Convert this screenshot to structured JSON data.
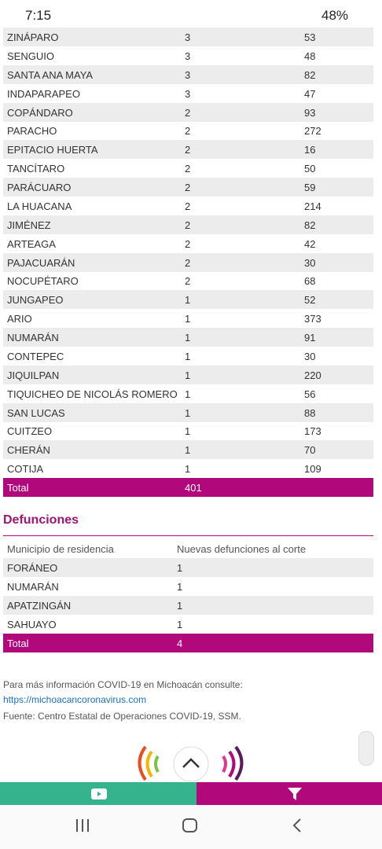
{
  "status_bar": {
    "time": "7:15",
    "battery": "48%"
  },
  "cases_table": {
    "rows": [
      [
        "ZINÁPARO",
        3,
        53
      ],
      [
        "SENGUIO",
        3,
        48
      ],
      [
        "SANTA ANA MAYA",
        3,
        82
      ],
      [
        "INDAPARAPEO",
        3,
        47
      ],
      [
        "COPÁNDARO",
        2,
        93
      ],
      [
        "PARACHO",
        2,
        272
      ],
      [
        "EPITACIO HUERTA",
        2,
        16
      ],
      [
        "TANCÍTARO",
        2,
        50
      ],
      [
        "PARÁCUARO",
        2,
        59
      ],
      [
        "LA HUACANA",
        2,
        214
      ],
      [
        "JIMÉNEZ",
        2,
        82
      ],
      [
        "ARTEAGA",
        2,
        42
      ],
      [
        "PAJACUARÁN",
        2,
        30
      ],
      [
        "NOCUPÉTARO",
        2,
        68
      ],
      [
        "JUNGAPEO",
        1,
        52
      ],
      [
        "ARIO",
        1,
        373
      ],
      [
        "NUMARÁN",
        1,
        91
      ],
      [
        "CONTEPEC",
        1,
        30
      ],
      [
        "JIQUILPAN",
        1,
        220
      ],
      [
        "TIQUICHEO DE NICOLÁS ROMERO",
        1,
        56
      ],
      [
        "SAN LUCAS",
        1,
        88
      ],
      [
        "CUITZEO",
        1,
        173
      ],
      [
        "CHERÁN",
        1,
        70
      ],
      [
        "COTIJA",
        1,
        109
      ]
    ],
    "total": [
      "Total",
      401
    ]
  },
  "deaths": {
    "title": "Defunciones",
    "header": [
      "Municipio de residencia",
      "Nuevas defunciones al corte"
    ],
    "rows": [
      [
        "FORÁNEO",
        1
      ],
      [
        "NUMARÁN",
        1
      ],
      [
        "APATZINGÁN",
        1
      ],
      [
        "SAHUAYO",
        1
      ]
    ],
    "total": [
      "Total",
      4
    ]
  },
  "footer": {
    "info": "Para más información COVID-19 en Michoacán consulte:",
    "link": "https://michoacancoronavirus.com",
    "source": "Fuente: Centro Estatal de Operaciones COVID-19, SSM."
  }
}
